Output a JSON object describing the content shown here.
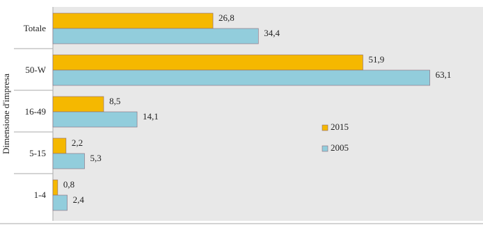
{
  "chart_data": {
    "type": "hbar",
    "y_axis_label": "Dimensione d'impresa",
    "categories": [
      "Totale",
      "50-W",
      "16-49",
      "5-15",
      "1-4"
    ],
    "series": [
      {
        "name": "2015",
        "color": "#f5b800",
        "values": [
          26.8,
          51.9,
          8.5,
          2.2,
          0.8
        ],
        "value_labels": [
          "26,8",
          "51,9",
          "8,5",
          "2,2",
          "0,8"
        ]
      },
      {
        "name": "2005",
        "color": "#92cddc",
        "values": [
          34.4,
          63.1,
          14.1,
          5.3,
          2.4
        ],
        "value_labels": [
          "34,4",
          "63,1",
          "14,1",
          "5,3",
          "2,4"
        ]
      }
    ],
    "xlim": [
      0,
      72
    ],
    "legend": "right"
  }
}
